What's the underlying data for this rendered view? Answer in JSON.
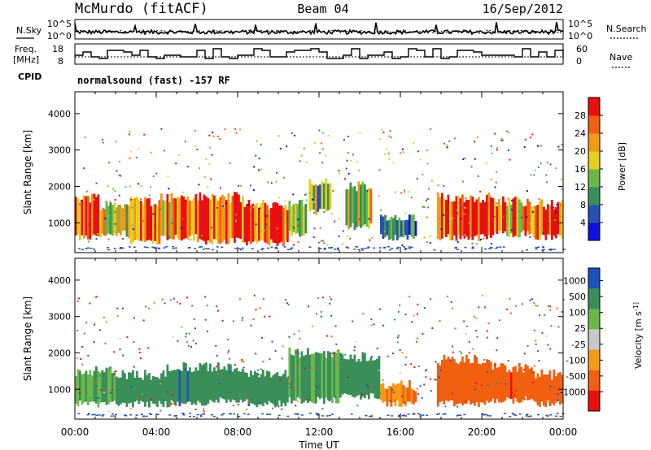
{
  "header": {
    "station": "McMurdo (fitACF)",
    "beam": "Beam 04",
    "date": "16/Sep/2012"
  },
  "noise_panel": {
    "left_label": "N.Sky",
    "right_label": "N.Search",
    "left_ticks": [
      "10^5",
      "10^0"
    ],
    "right_ticks": [
      "10^5",
      "10^0"
    ],
    "right_legend_style": "dotted"
  },
  "freq_panel": {
    "left_label_line1": "Freq.",
    "left_label_line2": "[MHz]",
    "left_ticks": [
      "18",
      "8"
    ],
    "right_label": "Nave",
    "right_ticks": [
      "60",
      "0"
    ],
    "right_legend_style": "dotted"
  },
  "cpid": {
    "label": "CPID",
    "program": "normalsound (fast)  -157 RF"
  },
  "x_axis": {
    "label": "Time UT",
    "ticks": [
      "00:00",
      "04:00",
      "08:00",
      "12:00",
      "16:00",
      "20:00",
      "00:00"
    ],
    "range_hours": [
      0,
      24
    ]
  },
  "chart_data": [
    {
      "type": "heatmap",
      "title": "",
      "ylabel": "Slant Range [km]",
      "xlabel": "",
      "yticks": [
        1000,
        2000,
        3000,
        4000
      ],
      "ylim": [
        180,
        4600
      ],
      "colorbar_label": "Power [dB]",
      "colorbar_ticks": [
        "4",
        "8",
        "12",
        "16",
        "20",
        "24",
        "28"
      ],
      "colorbar_range": [
        0,
        30
      ],
      "colors": [
        "#1010e0",
        "#2850b0",
        "#3a8e5a",
        "#6ab84c",
        "#e3d020",
        "#f29a18",
        "#f06010",
        "#e81010"
      ],
      "scatter_bands": [
        {
          "x": [
            0.0,
            1.2
          ],
          "y": [
            600,
            1700
          ],
          "value": 24
        },
        {
          "x": [
            1.2,
            2.6
          ],
          "y": [
            700,
            1500
          ],
          "value": 18
        },
        {
          "x": [
            2.6,
            4.2
          ],
          "y": [
            500,
            1600
          ],
          "value": 26
        },
        {
          "x": [
            4.2,
            6.0
          ],
          "y": [
            600,
            1700
          ],
          "value": 22
        },
        {
          "x": [
            6.0,
            8.3
          ],
          "y": [
            500,
            1700
          ],
          "value": 27
        },
        {
          "x": [
            8.3,
            10.5
          ],
          "y": [
            450,
            1500
          ],
          "value": 26
        },
        {
          "x": [
            10.5,
            11.3
          ],
          "y": [
            700,
            1500
          ],
          "value": 12
        },
        {
          "x": [
            11.5,
            12.6
          ],
          "y": [
            1300,
            2100
          ],
          "value": 14
        },
        {
          "x": [
            13.3,
            14.6
          ],
          "y": [
            900,
            2000
          ],
          "value": 16
        },
        {
          "x": [
            15.0,
            16.8
          ],
          "y": [
            600,
            1100
          ],
          "value": 8
        },
        {
          "x": [
            17.8,
            20.5
          ],
          "y": [
            600,
            1700
          ],
          "value": 28
        },
        {
          "x": [
            20.5,
            22.5
          ],
          "y": [
            700,
            1600
          ],
          "value": 24
        },
        {
          "x": [
            22.5,
            24.0
          ],
          "y": [
            600,
            1500
          ],
          "value": 26
        }
      ]
    },
    {
      "type": "heatmap",
      "title": "",
      "ylabel": "Slant Range [km]",
      "xlabel": "Time UT",
      "yticks": [
        1000,
        2000,
        3000,
        4000
      ],
      "ylim": [
        180,
        4600
      ],
      "colorbar_label": "Velocity [m s^-1]",
      "colorbar_ticks": [
        "1000",
        "500",
        "100",
        "25",
        "-25",
        "-100",
        "-500",
        "-1000"
      ],
      "colorbar_range": [
        -1000,
        1000
      ],
      "colors": [
        "#2050c0",
        "#3a8e5a",
        "#6ab84c",
        "#c8c8c8",
        "#f29a18",
        "#f06010",
        "#e81010"
      ],
      "scatter_bands": [
        {
          "x": [
            0.0,
            2.0
          ],
          "y": [
            600,
            1500
          ],
          "value": 100
        },
        {
          "x": [
            2.0,
            4.5
          ],
          "y": [
            600,
            1400
          ],
          "value": 300
        },
        {
          "x": [
            4.5,
            6.5
          ],
          "y": [
            600,
            1600
          ],
          "value": 400
        },
        {
          "x": [
            6.5,
            8.5
          ],
          "y": [
            700,
            1600
          ],
          "value": 300
        },
        {
          "x": [
            8.5,
            10.5
          ],
          "y": [
            600,
            1400
          ],
          "value": 200
        },
        {
          "x": [
            10.5,
            13.0
          ],
          "y": [
            700,
            2000
          ],
          "value": 100
        },
        {
          "x": [
            13.0,
            15.0
          ],
          "y": [
            800,
            1900
          ],
          "value": 150
        },
        {
          "x": [
            15.0,
            16.8
          ],
          "y": [
            600,
            1100
          ],
          "value": -100
        },
        {
          "x": [
            17.8,
            20.5
          ],
          "y": [
            600,
            1800
          ],
          "value": -300
        },
        {
          "x": [
            20.5,
            22.5
          ],
          "y": [
            700,
            1600
          ],
          "value": -400
        },
        {
          "x": [
            22.5,
            24.0
          ],
          "y": [
            600,
            1400
          ],
          "value": -300
        }
      ]
    }
  ]
}
